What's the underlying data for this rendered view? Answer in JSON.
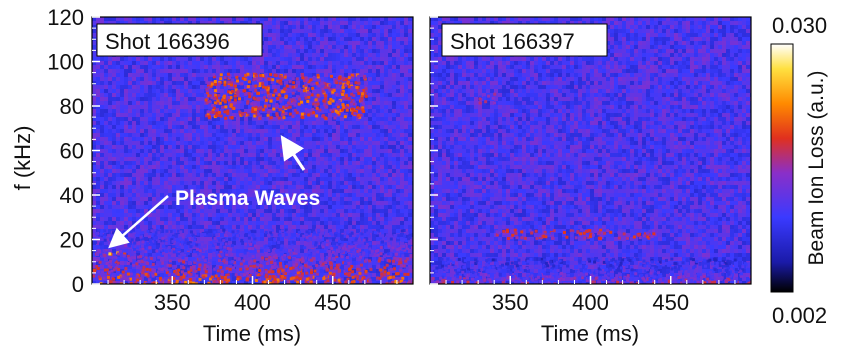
{
  "chart_data": [
    {
      "type": "heatmap",
      "label": "Shot 166396",
      "xlabel": "Time (ms)",
      "ylabel": "f (kHz)",
      "xlim": [
        300,
        500
      ],
      "ylim": [
        0,
        120
      ],
      "xticks": [
        "350",
        "400",
        "450"
      ],
      "yticks": [
        "0",
        "20",
        "40",
        "60",
        "80",
        "100",
        "120"
      ],
      "annotation": "Plasma Waves",
      "annotation_targets": [
        {
          "x": 307,
          "y": 15
        },
        {
          "x": 420,
          "y": 70
        }
      ],
      "features": [
        {
          "t0": 300,
          "t1": 320,
          "f0": 14,
          "f1": 15,
          "intensity": 0.85
        },
        {
          "t0": 370,
          "t1": 470,
          "f0": 75,
          "f1": 95,
          "intensity": 0.7
        },
        {
          "t0": 300,
          "t1": 500,
          "f0": 0,
          "f1": 25,
          "intensity": 0.75
        }
      ]
    },
    {
      "type": "heatmap",
      "label": "Shot 166397",
      "xlabel": "Time (ms)",
      "ylabel": "",
      "xlim": [
        300,
        500
      ],
      "ylim": [
        0,
        120
      ],
      "xticks": [
        "350",
        "400",
        "450"
      ],
      "yticks": [],
      "features": [
        {
          "t0": 340,
          "t1": 440,
          "f0": 21,
          "f1": 25,
          "intensity": 0.6
        },
        {
          "t0": 300,
          "t1": 500,
          "f0": 0,
          "f1": 12,
          "intensity": 0.6
        },
        {
          "t0": 330,
          "t1": 340,
          "f0": 82,
          "f1": 86,
          "intensity": 0.5
        }
      ]
    }
  ],
  "colorbar": {
    "label": "Beam Ion Loss (a.u.)",
    "min": "0.002",
    "max": "0.030",
    "colors": [
      "#000000",
      "#1a1aa8",
      "#3a3aff",
      "#8a2fc8",
      "#e0301e",
      "#ff8a00",
      "#ffe040",
      "#ffffff"
    ]
  }
}
